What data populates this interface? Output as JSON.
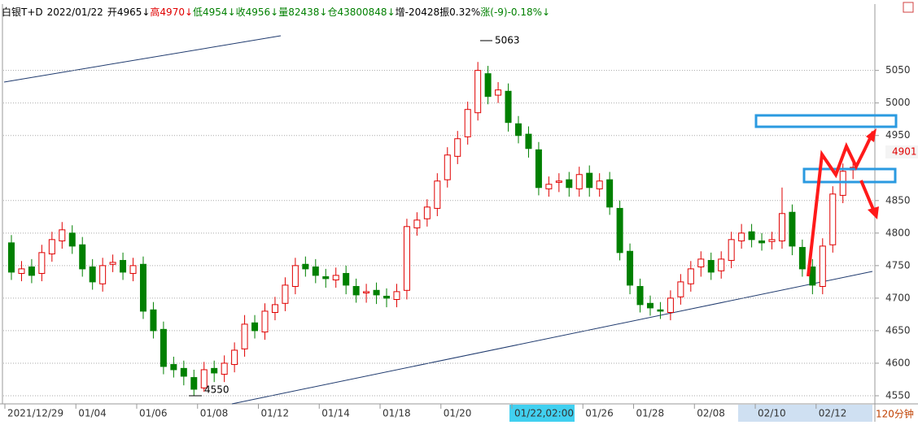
{
  "header": [
    {
      "text": "白银T+D",
      "color": "#000000"
    },
    {
      "text": "2022/01/22",
      "color": "#000000"
    },
    {
      "text": "开4965↓",
      "color": "#000000"
    },
    {
      "text": "高4970↓",
      "color": "#e00000"
    },
    {
      "text": "低4954↓",
      "color": "#008000"
    },
    {
      "text": "收4956↓",
      "color": "#008000"
    },
    {
      "text": "量82438↓",
      "color": "#008000"
    },
    {
      "text": "仓43800848↓",
      "color": "#008000"
    },
    {
      "text": "增-20428",
      "color": "#000000"
    },
    {
      "text": "振0.32%",
      "color": "#000000"
    },
    {
      "text": "涨(-9)-0.18%↓",
      "color": "#008000"
    }
  ],
  "chart_data": {
    "type": "candlestick",
    "period": "120分钟",
    "up_color": "#e00000",
    "down_color": "#008000",
    "grid": true,
    "ylim": [
      4540,
      5152
    ],
    "yticks": [
      4550,
      4600,
      4650,
      4700,
      4750,
      4800,
      4850,
      4950,
      5000,
      5050
    ],
    "categories": [
      "2021/12/29",
      null,
      null,
      null,
      null,
      null,
      null,
      "01/04",
      null,
      null,
      null,
      null,
      null,
      "01/06",
      null,
      null,
      null,
      null,
      null,
      "01/08",
      null,
      null,
      null,
      null,
      null,
      "01/12",
      null,
      null,
      null,
      null,
      null,
      "01/14",
      null,
      null,
      null,
      null,
      null,
      "01/18",
      null,
      null,
      null,
      null,
      null,
      "01/20",
      null,
      null,
      null,
      null,
      null,
      null,
      "01/22,02:00",
      null,
      null,
      null,
      null,
      null,
      null,
      "01/26",
      null,
      null,
      null,
      null,
      "01/28",
      null,
      null,
      null,
      null,
      null,
      "02/08",
      null,
      null,
      null,
      null,
      null,
      "02/10",
      null,
      null,
      null,
      null,
      null,
      "02/12",
      null,
      null,
      null
    ],
    "open": [
      4785,
      4738,
      4748,
      4738,
      4768,
      4788,
      4800,
      4782,
      4748,
      4722,
      4752,
      4758,
      4738,
      4752,
      4682,
      4652,
      4598,
      4592,
      4578,
      4562,
      4592,
      4583,
      4598,
      4622,
      4662,
      4648,
      4678,
      4692,
      4718,
      4752,
      4748,
      4733,
      4728,
      4738,
      4718,
      4708,
      4712,
      4703,
      4698,
      4712,
      4808,
      4822,
      4838,
      4882,
      4918,
      4948,
      4985,
      5045,
      5012,
      5018,
      4968,
      4952,
      4928,
      4868,
      4878,
      4882,
      4868,
      4892,
      4868,
      4882,
      4838,
      4772,
      4718,
      4692,
      4682,
      4678,
      4702,
      4722,
      4748,
      4758,
      4742,
      4758,
      4788,
      4802,
      4788,
      4787,
      4788,
      4832,
      4778,
      4748,
      4718,
      4782,
      4858,
      4897
    ],
    "high": [
      4797,
      4757,
      4760,
      4782,
      4802,
      4817,
      4812,
      4794,
      4760,
      4762,
      4767,
      4770,
      4762,
      4764,
      4694,
      4664,
      4610,
      4604,
      4590,
      4602,
      4604,
      4612,
      4632,
      4674,
      4674,
      4692,
      4702,
      4732,
      4762,
      4764,
      4760,
      4745,
      4747,
      4750,
      4730,
      4722,
      4724,
      4715,
      4722,
      4822,
      4832,
      4852,
      4892,
      4932,
      4957,
      5002,
      5063,
      5057,
      5032,
      5030,
      4980,
      4964,
      4940,
      4887,
      4892,
      4894,
      4902,
      4904,
      4892,
      4894,
      4850,
      4784,
      4730,
      4704,
      4694,
      4712,
      4737,
      4757,
      4772,
      4770,
      4772,
      4802,
      4814,
      4814,
      4800,
      4802,
      4870,
      4844,
      4790,
      4760,
      4792,
      4872,
      4907,
      4913
    ],
    "low": [
      4728,
      4726,
      4723,
      4726,
      4756,
      4776,
      4768,
      4733,
      4713,
      4710,
      4740,
      4728,
      4726,
      4668,
      4638,
      4583,
      4578,
      4566,
      4550,
      4556,
      4571,
      4571,
      4586,
      4610,
      4638,
      4636,
      4666,
      4680,
      4706,
      4733,
      4723,
      4716,
      4716,
      4706,
      4693,
      4693,
      4691,
      4686,
      4686,
      4698,
      4796,
      4810,
      4826,
      4870,
      4906,
      4936,
      4973,
      4998,
      5000,
      4956,
      4938,
      4916,
      4858,
      4856,
      4863,
      4856,
      4856,
      4856,
      4856,
      4828,
      4758,
      4706,
      4678,
      4673,
      4668,
      4666,
      4690,
      4710,
      4733,
      4728,
      4730,
      4746,
      4776,
      4778,
      4773,
      4775,
      4776,
      4766,
      4733,
      4706,
      4706,
      4770,
      4846,
      4883
    ],
    "close": [
      4740,
      4745,
      4735,
      4770,
      4790,
      4805,
      4780,
      4745,
      4725,
      4750,
      4755,
      4740,
      4750,
      4680,
      4650,
      4595,
      4590,
      4580,
      4560,
      4590,
      4585,
      4600,
      4620,
      4660,
      4650,
      4680,
      4690,
      4720,
      4750,
      4745,
      4735,
      4730,
      4735,
      4720,
      4705,
      4710,
      4705,
      4700,
      4710,
      4810,
      4820,
      4840,
      4880,
      4920,
      4945,
      4990,
      5050,
      5010,
      5020,
      4970,
      4950,
      4930,
      4870,
      4875,
      4880,
      4870,
      4890,
      4870,
      4880,
      4840,
      4770,
      4720,
      4690,
      4685,
      4680,
      4700,
      4725,
      4745,
      4760,
      4740,
      4760,
      4790,
      4800,
      4790,
      4785,
      4790,
      4830,
      4780,
      4745,
      4720,
      4780,
      4860,
      4895,
      4901
    ]
  }
}
